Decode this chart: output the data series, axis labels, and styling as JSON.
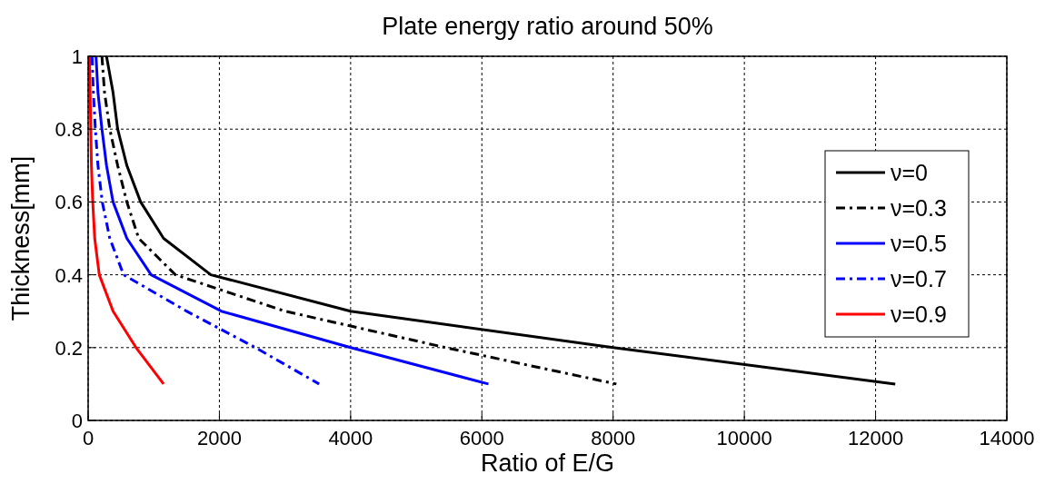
{
  "chart_data": {
    "type": "line",
    "title": "Plate energy ratio around 50%",
    "xlabel": "Ratio of E/G",
    "ylabel": "Thickness[mm]",
    "xlim": [
      0,
      14000
    ],
    "xticks": [
      0,
      2000,
      4000,
      6000,
      8000,
      10000,
      12000,
      14000
    ],
    "ylim": [
      0,
      1
    ],
    "yticks": [
      0,
      0.2,
      0.4,
      0.6,
      0.8,
      1
    ],
    "grid": true,
    "legend": "right",
    "marker": "none",
    "series": [
      {
        "name": "ν=0",
        "color": "#000000",
        "line_style": "solid",
        "x": [
          280,
          380,
          450,
          590,
          800,
          1150,
          1870,
          4000,
          8000,
          12300
        ],
        "values": [
          1,
          0.9,
          0.8,
          0.7,
          0.6,
          0.5,
          0.4,
          0.3,
          0.2,
          0.1
        ]
      },
      {
        "name": "ν=0.3",
        "color": "#000000",
        "line_style": "dashed",
        "x": [
          210,
          250,
          330,
          450,
          590,
          770,
          1330,
          3000,
          5450,
          8050
        ],
        "values": [
          1,
          0.9,
          0.8,
          0.7,
          0.6,
          0.5,
          0.4,
          0.3,
          0.2,
          0.1
        ]
      },
      {
        "name": "ν=0.5",
        "color": "#0000ff",
        "line_style": "solid",
        "x": [
          120,
          150,
          210,
          280,
          380,
          590,
          960,
          2030,
          4000,
          6100
        ],
        "values": [
          1,
          0.9,
          0.8,
          0.7,
          0.6,
          0.5,
          0.4,
          0.3,
          0.2,
          0.1
        ]
      },
      {
        "name": "ν=0.7",
        "color": "#0000ff",
        "line_style": "dashed",
        "x": [
          60,
          80,
          110,
          150,
          215,
          330,
          540,
          1500,
          2550,
          3520
        ],
        "values": [
          1,
          0.9,
          0.8,
          0.7,
          0.6,
          0.5,
          0.4,
          0.3,
          0.2,
          0.1
        ]
      },
      {
        "name": "ν=0.9",
        "color": "#ff0000",
        "line_style": "solid",
        "x": [
          20,
          30,
          40,
          50,
          70,
          100,
          170,
          380,
          730,
          1150
        ],
        "values": [
          1,
          0.9,
          0.8,
          0.7,
          0.6,
          0.5,
          0.4,
          0.3,
          0.2,
          0.1
        ]
      }
    ]
  }
}
